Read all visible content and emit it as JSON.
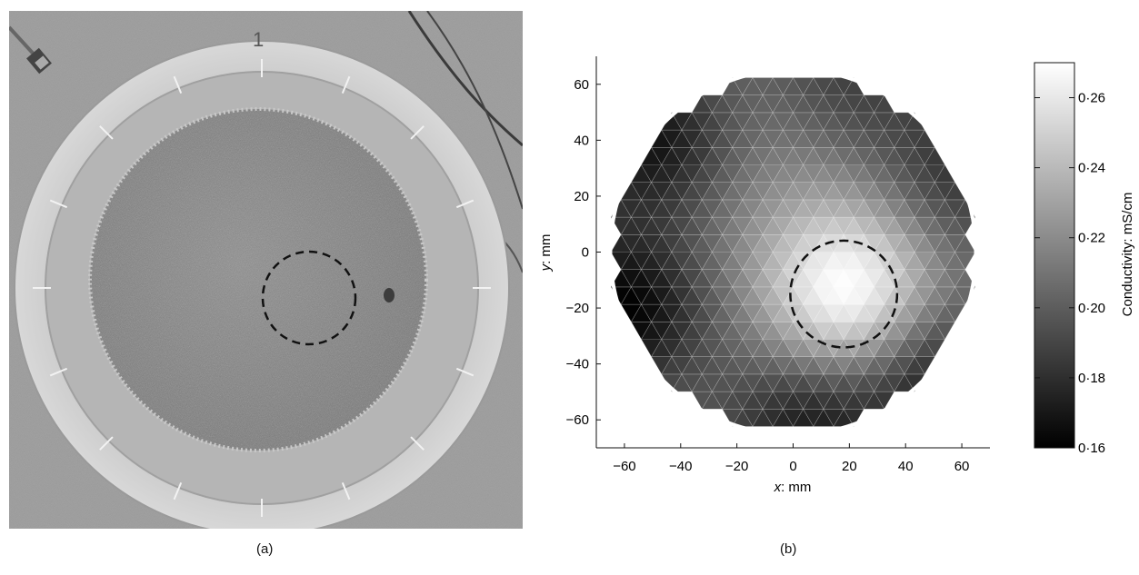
{
  "panels": {
    "a": {
      "caption": "(a)",
      "photo_label": "1"
    },
    "b": {
      "caption": "(b)"
    }
  },
  "chart_data": {
    "type": "heatmap",
    "title": "",
    "xlabel_var": "x",
    "xlabel_unit": ": mm",
    "ylabel_var": "y",
    "ylabel_unit": ": mm",
    "xlim": [
      -70,
      70
    ],
    "ylim": [
      -70,
      70
    ],
    "xticks": [
      -60,
      -40,
      -20,
      0,
      20,
      40,
      60
    ],
    "yticks": [
      -60,
      -40,
      -20,
      0,
      20,
      40,
      60
    ],
    "xtick_labels": [
      "−60",
      "−40",
      "−20",
      "0",
      "20",
      "40",
      "60"
    ],
    "ytick_labels": [
      "−60",
      "−40",
      "−20",
      "0",
      "20",
      "40",
      "60"
    ],
    "domain": {
      "shape": "circle",
      "center": [
        0,
        0
      ],
      "radius": 65
    },
    "inclusion": {
      "shape": "dashed-circle",
      "center": [
        18,
        -15
      ],
      "radius": 19
    },
    "colorbar": {
      "label": "Conductivity: mS/cm",
      "range": [
        0.16,
        0.27
      ],
      "ticks": [
        0.16,
        0.18,
        0.2,
        0.22,
        0.24,
        0.26
      ],
      "tick_labels": [
        "0·16",
        "0·18",
        "0·20",
        "0·22",
        "0·24",
        "0·26"
      ],
      "colormap": "gray"
    },
    "field_features": [
      {
        "kind": "peak",
        "x": 20,
        "y": -15,
        "value": 0.27
      },
      {
        "kind": "low",
        "x": -60,
        "y": -20,
        "value": 0.16
      },
      {
        "kind": "low",
        "x": -50,
        "y": 40,
        "value": 0.165
      },
      {
        "kind": "low",
        "x": 5,
        "y": -62,
        "value": 0.17
      },
      {
        "kind": "low",
        "x": 50,
        "y": -45,
        "value": 0.17
      },
      {
        "kind": "low",
        "x": 60,
        "y": 30,
        "value": 0.18
      },
      {
        "kind": "low",
        "x": 20,
        "y": 62,
        "value": 0.185
      }
    ],
    "background_value": 0.205
  }
}
